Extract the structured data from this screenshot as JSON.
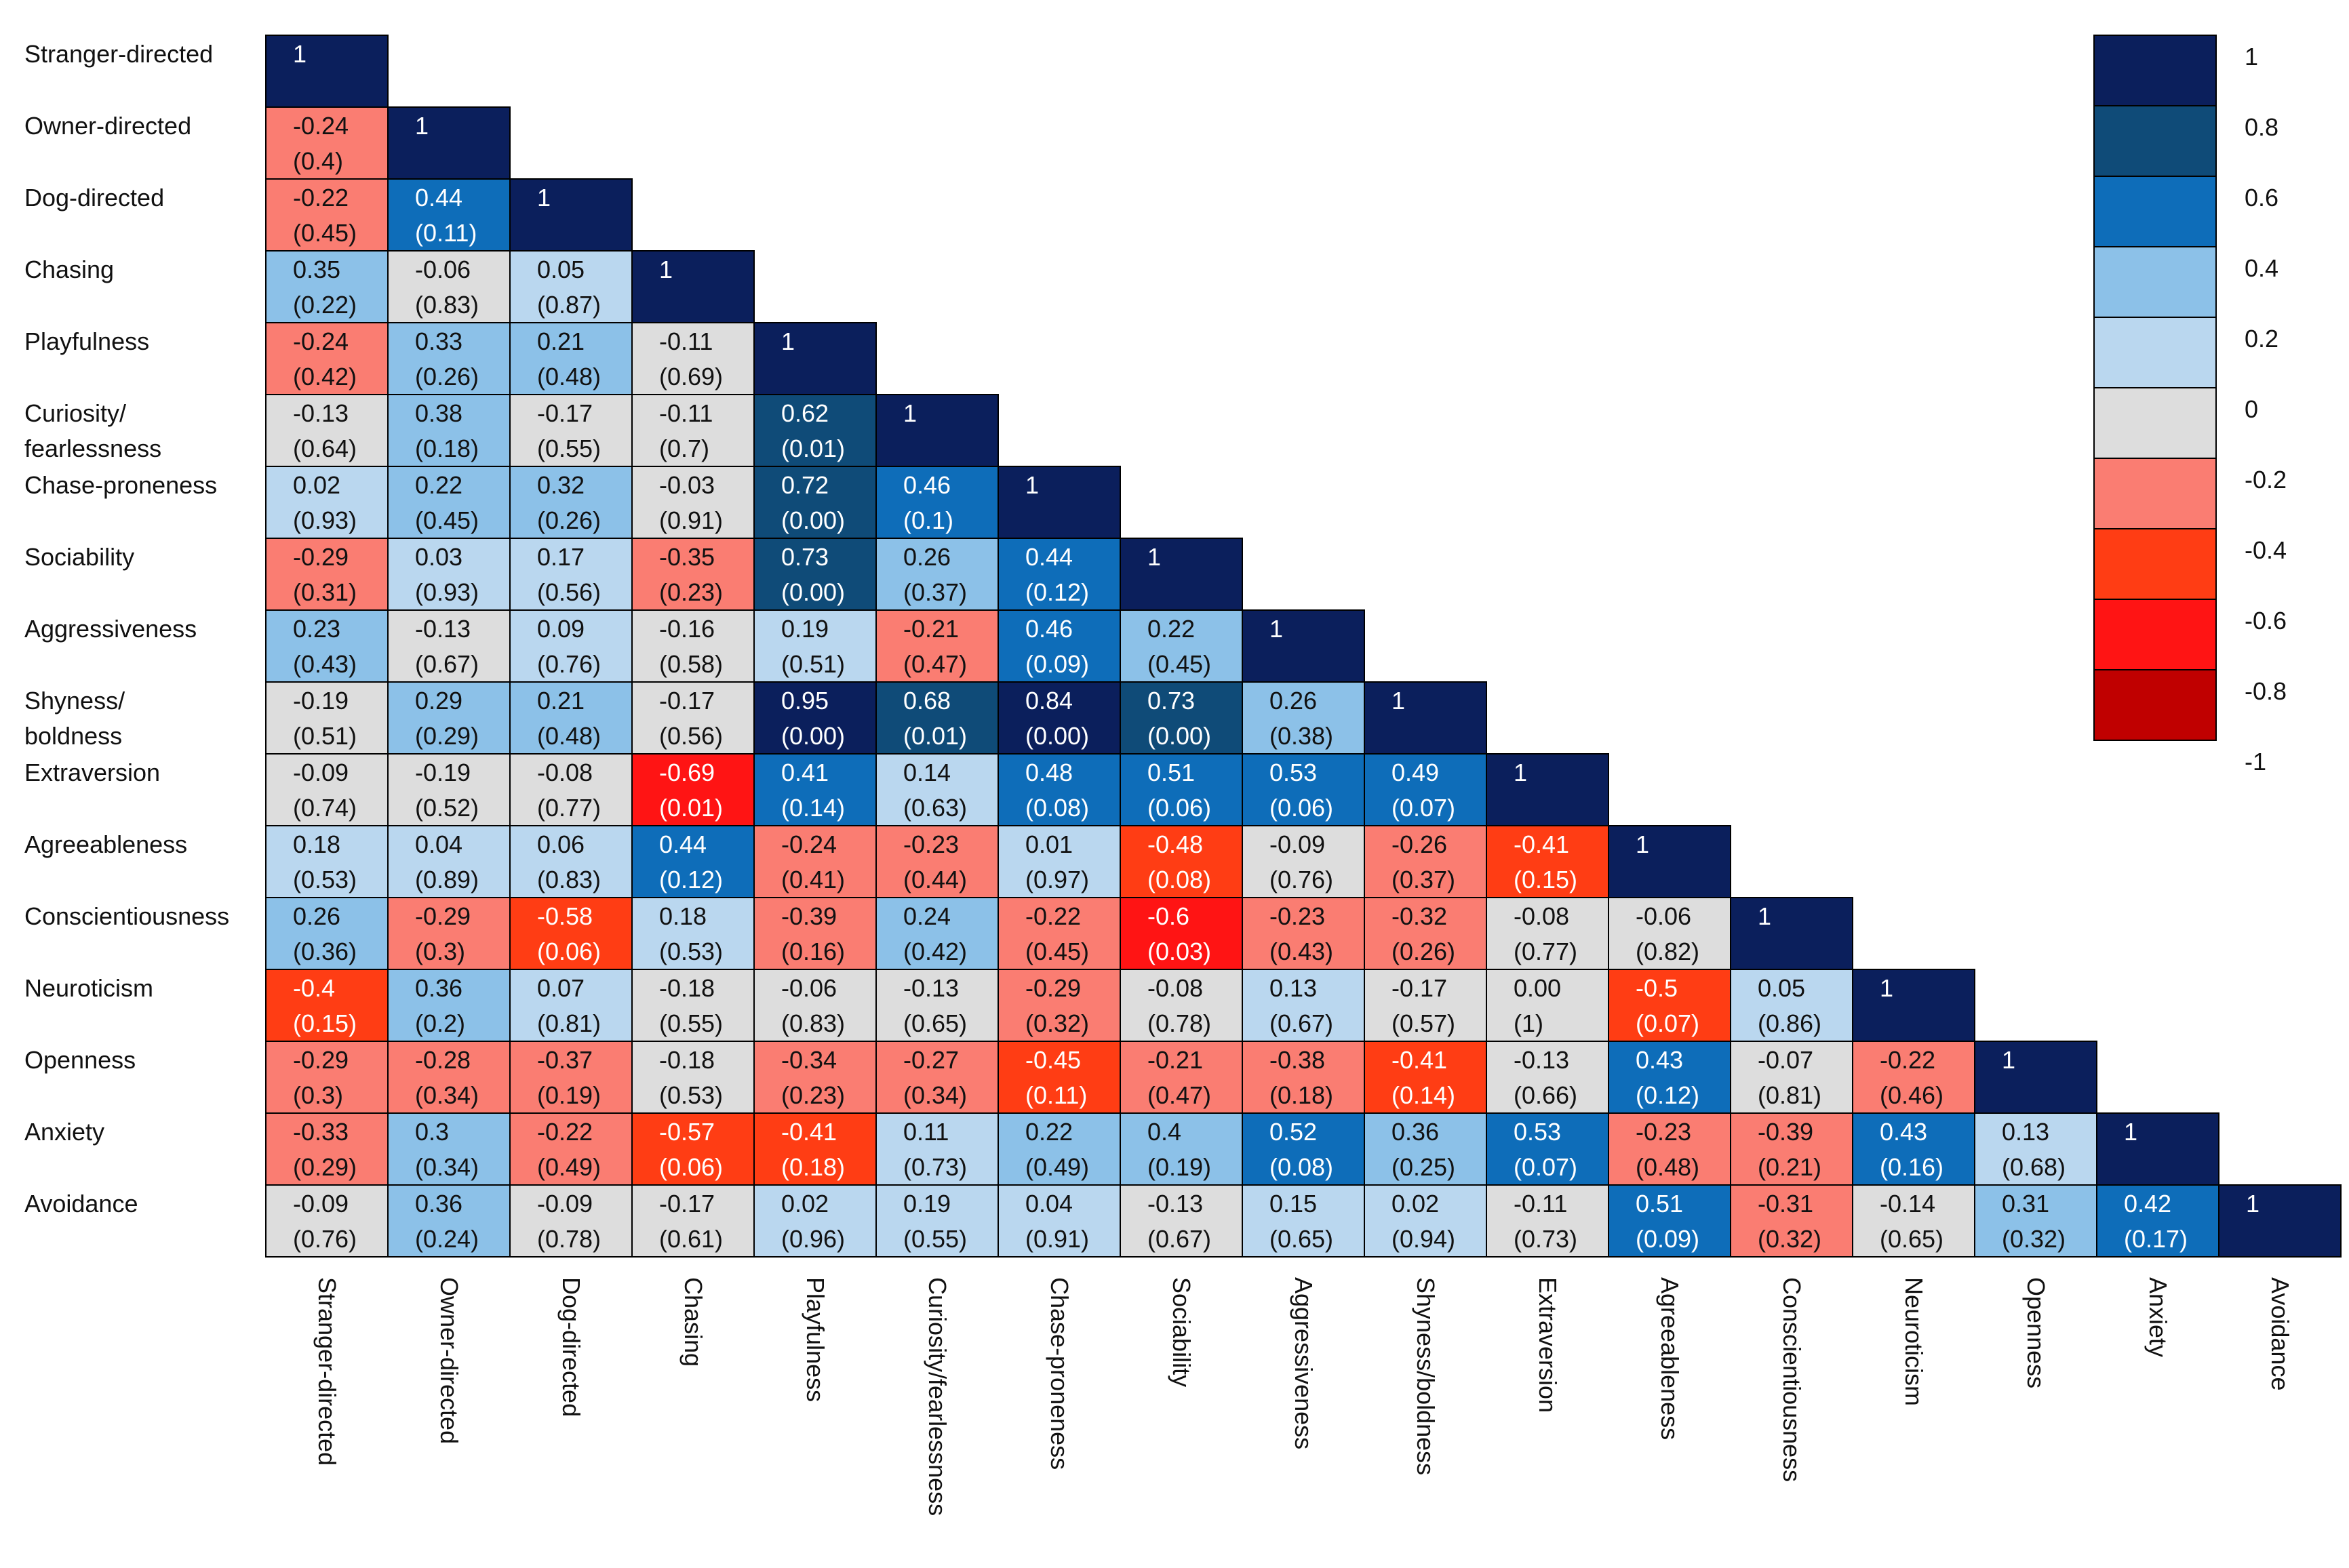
{
  "chart_data": {
    "type": "heatmap",
    "title": "",
    "variables": [
      "Stranger-directed",
      "Owner-directed",
      "Dog-directed",
      "Chasing",
      "Playfulness",
      "Curiosity/fearlessness",
      "Chase-proneness",
      "Sociability",
      "Aggressiveness",
      "Shyness/boldness",
      "Extraversion",
      "Agreeableness",
      "Conscientiousness",
      "Neuroticism",
      "Openness",
      "Anxiety",
      "Avoidance"
    ],
    "row_labels": [
      [
        "Stranger-directed"
      ],
      [
        "Owner-directed"
      ],
      [
        "Dog-directed"
      ],
      [
        "Chasing"
      ],
      [
        "Playfulness"
      ],
      [
        "Curiosity/",
        "fearlessness"
      ],
      [
        "Chase-proneness"
      ],
      [
        "Sociability"
      ],
      [
        "Aggressiveness"
      ],
      [
        "Shyness/",
        "boldness"
      ],
      [
        "Extraversion"
      ],
      [
        "Agreeableness"
      ],
      [
        "Conscientiousness"
      ],
      [
        "Neuroticism"
      ],
      [
        "Openness"
      ],
      [
        "Anxiety"
      ],
      [
        "Avoidance"
      ]
    ],
    "column_labels": [
      "Stranger-directed",
      "Owner-directed",
      "Dog-directed",
      "Chasing",
      "Playfulness",
      "Curiosity/fearlessness",
      "Chase-proneness",
      "Sociability",
      "Aggressiveness",
      "Shyness/boldness",
      "Extraversion",
      "Agreeableness",
      "Conscientiousness",
      "Neuroticism",
      "Openness",
      "Anxiety",
      "Avoidance"
    ],
    "diagonal_label": "1",
    "correlations": [
      [],
      [
        "-0.24"
      ],
      [
        "-0.22",
        "0.44"
      ],
      [
        "0.35",
        "-0.06",
        "0.05"
      ],
      [
        "-0.24",
        "0.33",
        "0.21",
        "-0.11"
      ],
      [
        "-0.13",
        "0.38",
        "-0.17",
        "-0.11",
        "0.62"
      ],
      [
        "0.02",
        "0.22",
        "0.32",
        "-0.03",
        "0.72",
        "0.46"
      ],
      [
        "-0.29",
        "0.03",
        "0.17",
        "-0.35",
        "0.73",
        "0.26",
        "0.44"
      ],
      [
        "0.23",
        "-0.13",
        "0.09",
        "-0.16",
        "0.19",
        "-0.21",
        "0.46",
        "0.22"
      ],
      [
        "-0.19",
        "0.29",
        "0.21",
        "-0.17",
        "0.95",
        "0.68",
        "0.84",
        "0.73",
        "0.26"
      ],
      [
        "-0.09",
        "-0.19",
        "-0.08",
        "-0.69",
        "0.41",
        "0.14",
        "0.48",
        "0.51",
        "0.53",
        "0.49"
      ],
      [
        "0.18",
        "0.04",
        "0.06",
        "0.44",
        "-0.24",
        "-0.23",
        "0.01",
        "-0.48",
        "-0.09",
        "-0.26",
        "-0.41"
      ],
      [
        "0.26",
        "-0.29",
        "-0.58",
        "0.18",
        "-0.39",
        "0.24",
        "-0.22",
        "-0.6",
        "-0.23",
        "-0.32",
        "-0.08",
        "-0.06"
      ],
      [
        "-0.4",
        "0.36",
        "0.07",
        "-0.18",
        "-0.06",
        "-0.13",
        "-0.29",
        "-0.08",
        "0.13",
        "-0.17",
        "0.00",
        "-0.5",
        "0.05"
      ],
      [
        "-0.29",
        "-0.28",
        "-0.37",
        "-0.18",
        "-0.34",
        "-0.27",
        "-0.45",
        "-0.21",
        "-0.38",
        "-0.41",
        "-0.13",
        "0.43",
        "-0.07",
        "-0.22"
      ],
      [
        "-0.33",
        "0.3",
        "-0.22",
        "-0.57",
        "-0.41",
        "0.11",
        "0.22",
        "0.4",
        "0.52",
        "0.36",
        "0.53",
        "-0.23",
        "-0.39",
        "0.43",
        "0.13"
      ],
      [
        "-0.09",
        "0.36",
        "-0.09",
        "-0.17",
        "0.02",
        "0.19",
        "0.04",
        "-0.13",
        "0.15",
        "0.02",
        "-0.11",
        "0.51",
        "-0.31",
        "-0.14",
        "0.31",
        "0.42"
      ]
    ],
    "p_values": [
      [],
      [
        "(0.4)"
      ],
      [
        "(0.45)",
        "(0.11)"
      ],
      [
        "(0.22)",
        "(0.83)",
        "(0.87)"
      ],
      [
        "(0.42)",
        "(0.26)",
        "(0.48)",
        "(0.69)"
      ],
      [
        "(0.64)",
        "(0.18)",
        "(0.55)",
        "(0.7)",
        "(0.01)"
      ],
      [
        "(0.93)",
        "(0.45)",
        "(0.26)",
        "(0.91)",
        "(0.00)",
        "(0.1)"
      ],
      [
        "(0.31)",
        "(0.93)",
        "(0.56)",
        "(0.23)",
        "(0.00)",
        "(0.37)",
        "(0.12)"
      ],
      [
        "(0.43)",
        "(0.67)",
        "(0.76)",
        "(0.58)",
        "(0.51)",
        "(0.47)",
        "(0.09)",
        "(0.45)"
      ],
      [
        "(0.51)",
        "(0.29)",
        "(0.48)",
        "(0.56)",
        "(0.00)",
        "(0.01)",
        "(0.00)",
        "(0.00)",
        "(0.38)"
      ],
      [
        "(0.74)",
        "(0.52)",
        "(0.77)",
        "(0.01)",
        "(0.14)",
        "(0.63)",
        "(0.08)",
        "(0.06)",
        "(0.06)",
        "(0.07)"
      ],
      [
        "(0.53)",
        "(0.89)",
        "(0.83)",
        "(0.12)",
        "(0.41)",
        "(0.44)",
        "(0.97)",
        "(0.08)",
        "(0.76)",
        "(0.37)",
        "(0.15)"
      ],
      [
        "(0.36)",
        "(0.3)",
        "(0.06)",
        "(0.53)",
        "(0.16)",
        "(0.42)",
        "(0.45)",
        "(0.03)",
        "(0.43)",
        "(0.26)",
        "(0.77)",
        "(0.82)"
      ],
      [
        "(0.15)",
        "(0.2)",
        "(0.81)",
        "(0.55)",
        "(0.83)",
        "(0.65)",
        "(0.32)",
        "(0.78)",
        "(0.67)",
        "(0.57)",
        "(1)",
        "(0.07)",
        "(0.86)"
      ],
      [
        "(0.3)",
        "(0.34)",
        "(0.19)",
        "(0.53)",
        "(0.23)",
        "(0.34)",
        "(0.11)",
        "(0.47)",
        "(0.18)",
        "(0.14)",
        "(0.66)",
        "(0.12)",
        "(0.81)",
        "(0.46)"
      ],
      [
        "(0.29)",
        "(0.34)",
        "(0.49)",
        "(0.06)",
        "(0.18)",
        "(0.73)",
        "(0.49)",
        "(0.19)",
        "(0.08)",
        "(0.25)",
        "(0.07)",
        "(0.48)",
        "(0.21)",
        "(0.16)",
        "(0.68)"
      ],
      [
        "(0.76)",
        "(0.24)",
        "(0.78)",
        "(0.61)",
        "(0.96)",
        "(0.55)",
        "(0.91)",
        "(0.67)",
        "(0.65)",
        "(0.94)",
        "(0.73)",
        "(0.09)",
        "(0.32)",
        "(0.65)",
        "(0.32)",
        "(0.17)"
      ]
    ],
    "colorscale": {
      "range": [
        -1,
        1
      ],
      "tick_labels": [
        "1",
        "0.8",
        "0.6",
        "0.4",
        "0.2",
        "0",
        "-0.2",
        "-0.4",
        "-0.6",
        "-0.8",
        "-1"
      ],
      "bins": [
        {
          "min": 0.8,
          "max": 1.0,
          "color": "#0b1f5c"
        },
        {
          "min": 0.6,
          "max": 0.8,
          "color": "#0f4b78"
        },
        {
          "min": 0.4,
          "max": 0.6,
          "color": "#0e6db9"
        },
        {
          "min": 0.2,
          "max": 0.4,
          "color": "#8cc1e8"
        },
        {
          "min": 0.0,
          "max": 0.2,
          "color": "#bad7ef"
        },
        {
          "min": -0.2,
          "max": 0.0,
          "color": "#dddddd"
        },
        {
          "min": -0.4,
          "max": -0.2,
          "color": "#fa7d72"
        },
        {
          "min": -0.6,
          "max": -0.4,
          "color": "#ff3d14"
        },
        {
          "min": -0.8,
          "max": -0.6,
          "color": "#ff1414"
        },
        {
          "min": -1.0,
          "max": -0.8,
          "color": "#c00000"
        }
      ],
      "swatch_colors": [
        "#0b1f5c",
        "#0f4b78",
        "#0e6db9",
        "#8cc1e8",
        "#bad7ef",
        "#dddddd",
        "#fa7d72",
        "#ff3d14",
        "#ff1414",
        "#c00000"
      ]
    },
    "cell_colors": {
      "diagonal": "#0b1f5c",
      "text_dark": "#111111",
      "text_light": "#ffffff",
      "grid_line": "#000000"
    },
    "legend": "right"
  }
}
